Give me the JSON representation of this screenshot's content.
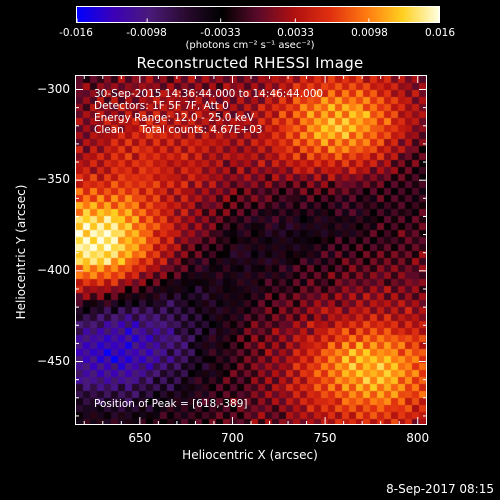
{
  "colorbar": {
    "ticks": [
      "-0.016",
      "-0.0098",
      "-0.0033",
      "0.0033",
      "0.0098",
      "0.016"
    ],
    "tick_values": [
      -0.016,
      -0.0098,
      -0.0033,
      0.0033,
      0.0098,
      0.016
    ],
    "range": [
      -0.016,
      0.016
    ],
    "unit_text": "(photons cm⁻² s⁻¹ asec⁻²)",
    "colormap": [
      "#0000ff",
      "#3b00b8",
      "#4a1a7a",
      "#2a0a30",
      "#000000",
      "#5a0a2a",
      "#b01010",
      "#e03010",
      "#ff7a10",
      "#ffd020",
      "#ffffe0"
    ]
  },
  "chart_data": {
    "type": "heatmap",
    "title": "Reconstructed RHESSI Image",
    "xlabel": "Heliocentric X (arcsec)",
    "ylabel": "Heliocentric Y (arcsec)",
    "xlim": [
      615,
      805
    ],
    "ylim": [
      -485,
      -292
    ],
    "xticks": [
      650,
      700,
      750,
      800
    ],
    "yticks": [
      -300,
      -350,
      -400,
      -450
    ],
    "xtick_labels": [
      "650",
      "700",
      "750",
      "800"
    ],
    "ytick_labels": [
      "−300",
      "−350",
      "−400",
      "−450"
    ],
    "annotations": [
      "30-Sep-2015 14:36:44.000 to 14:46:44.000",
      "Detectors: 1F 5F 7F, Att 0",
      "Energy Range: 12.0 - 25.0 keV",
      "Clean     Total counts: 4.67E+03"
    ],
    "peak_text": "Position of Peak = [618,-389]",
    "peak": [
      618,
      -389
    ],
    "sources": [
      {
        "x": 625,
        "y": -385,
        "strength": 0.016
      },
      {
        "x": 760,
        "y": -320,
        "strength": 0.012
      },
      {
        "x": 775,
        "y": -455,
        "strength": 0.012
      },
      {
        "x": 660,
        "y": -330,
        "strength": 0.005
      }
    ]
  },
  "footer": {
    "date": "8-Sep-2017 08:15"
  }
}
